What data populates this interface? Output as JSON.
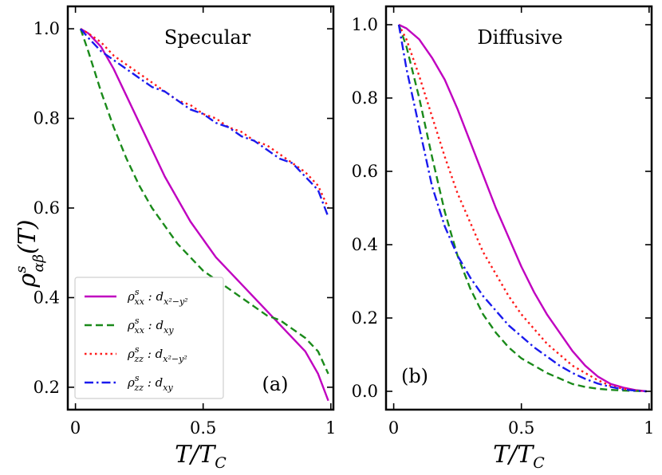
{
  "figure": {
    "ylabel": "ρ",
    "ylabel_sup": "s",
    "ylabel_sub": "αβ",
    "ylabel_tail": "(T)"
  },
  "chart_data": [
    {
      "type": "line",
      "panel": "a",
      "title": "Specular",
      "tag": "(a)",
      "xlabel": "T/T",
      "xlabel_sub": "C",
      "xlim": [
        -0.03,
        1.01
      ],
      "ylim": [
        0.15,
        1.05
      ],
      "xticks": [
        0,
        0.5,
        1
      ],
      "xtick_labels": [
        "0",
        "0.5",
        "1"
      ],
      "yticks": [
        0.2,
        0.4,
        0.6,
        0.8,
        1.0
      ],
      "ytick_labels": [
        "0.2",
        "0.4",
        "0.6",
        "0.8",
        "1.0"
      ],
      "legend": "lower-left",
      "series": [
        {
          "name": "rho_xx_dx2y2",
          "legend_main": "ρ",
          "legend_sup": "s",
          "legend_sub": "xx",
          "legend_mid": " : d",
          "legend_sub2": "x²−y²",
          "color": "#c000c0",
          "dash": "solid",
          "x": [
            0.02,
            0.05,
            0.1,
            0.15,
            0.2,
            0.25,
            0.3,
            0.35,
            0.4,
            0.45,
            0.5,
            0.55,
            0.6,
            0.65,
            0.7,
            0.75,
            0.8,
            0.85,
            0.9,
            0.95,
            0.99
          ],
          "y": [
            1.0,
            0.99,
            0.96,
            0.91,
            0.85,
            0.79,
            0.73,
            0.67,
            0.62,
            0.57,
            0.53,
            0.49,
            0.46,
            0.43,
            0.4,
            0.37,
            0.34,
            0.31,
            0.28,
            0.23,
            0.17
          ]
        },
        {
          "name": "rho_xx_dxy",
          "legend_main": "ρ",
          "legend_sup": "s",
          "legend_sub": "xx",
          "legend_mid": " : d",
          "legend_sub2": "xy",
          "color": "#1a8a1a",
          "dash": "dashed",
          "x": [
            0.02,
            0.05,
            0.1,
            0.15,
            0.2,
            0.25,
            0.3,
            0.35,
            0.4,
            0.45,
            0.5,
            0.55,
            0.6,
            0.65,
            0.7,
            0.75,
            0.8,
            0.85,
            0.9,
            0.95,
            0.99
          ],
          "y": [
            1.0,
            0.95,
            0.86,
            0.78,
            0.71,
            0.65,
            0.6,
            0.56,
            0.52,
            0.49,
            0.46,
            0.44,
            0.42,
            0.4,
            0.38,
            0.36,
            0.35,
            0.33,
            0.31,
            0.28,
            0.23
          ]
        },
        {
          "name": "rho_zz_dx2y2",
          "legend_main": "ρ",
          "legend_sup": "s",
          "legend_sub": "zz",
          "legend_mid": " : d",
          "legend_sub2": "x²−y²",
          "color": "#ff1a1a",
          "dash": "dotted",
          "x": [
            0.02,
            0.05,
            0.1,
            0.15,
            0.2,
            0.25,
            0.3,
            0.35,
            0.4,
            0.45,
            0.5,
            0.55,
            0.6,
            0.65,
            0.7,
            0.75,
            0.8,
            0.85,
            0.9,
            0.95,
            0.99
          ],
          "y": [
            1.0,
            0.99,
            0.97,
            0.94,
            0.92,
            0.9,
            0.88,
            0.86,
            0.84,
            0.83,
            0.81,
            0.8,
            0.78,
            0.77,
            0.75,
            0.74,
            0.72,
            0.7,
            0.68,
            0.65,
            0.6
          ]
        },
        {
          "name": "rho_zz_dxy",
          "legend_main": "ρ",
          "legend_sup": "s",
          "legend_sub": "zz",
          "legend_mid": " : d",
          "legend_sub2": "xy",
          "color": "#1a1aee",
          "dash": "dashdot",
          "x": [
            0.02,
            0.05,
            0.1,
            0.15,
            0.2,
            0.25,
            0.3,
            0.35,
            0.4,
            0.45,
            0.5,
            0.55,
            0.6,
            0.65,
            0.7,
            0.75,
            0.8,
            0.85,
            0.9,
            0.95,
            0.99
          ],
          "y": [
            1.0,
            0.98,
            0.95,
            0.93,
            0.91,
            0.89,
            0.87,
            0.86,
            0.84,
            0.82,
            0.81,
            0.79,
            0.78,
            0.76,
            0.75,
            0.73,
            0.71,
            0.7,
            0.67,
            0.64,
            0.58
          ]
        }
      ]
    },
    {
      "type": "line",
      "panel": "b",
      "title": "Diffusive",
      "tag": "(b)",
      "xlabel": "T/T",
      "xlabel_sub": "C",
      "xlim": [
        -0.03,
        1.01
      ],
      "ylim": [
        -0.05,
        1.05
      ],
      "xticks": [
        0,
        0.5,
        1
      ],
      "xtick_labels": [
        "0",
        "0.5",
        "1"
      ],
      "yticks": [
        0.0,
        0.2,
        0.4,
        0.6,
        0.8,
        1.0
      ],
      "ytick_labels": [
        "0.0",
        "0.2",
        "0.4",
        "0.6",
        "0.8",
        "1.0"
      ],
      "series": [
        {
          "name": "rho_xx_dx2y2",
          "color": "#c000c0",
          "dash": "solid",
          "x": [
            0.02,
            0.05,
            0.1,
            0.15,
            0.2,
            0.25,
            0.3,
            0.35,
            0.4,
            0.45,
            0.5,
            0.55,
            0.6,
            0.65,
            0.7,
            0.75,
            0.8,
            0.85,
            0.9,
            0.95,
            0.99
          ],
          "y": [
            1.0,
            0.99,
            0.96,
            0.91,
            0.85,
            0.77,
            0.68,
            0.59,
            0.5,
            0.42,
            0.34,
            0.27,
            0.21,
            0.16,
            0.11,
            0.07,
            0.04,
            0.02,
            0.01,
            0.003,
            0.0
          ]
        },
        {
          "name": "rho_xx_dxy",
          "color": "#1a8a1a",
          "dash": "dashed",
          "x": [
            0.02,
            0.05,
            0.1,
            0.15,
            0.2,
            0.25,
            0.3,
            0.35,
            0.4,
            0.45,
            0.5,
            0.55,
            0.6,
            0.65,
            0.7,
            0.75,
            0.8,
            0.85,
            0.9,
            0.95,
            0.99
          ],
          "y": [
            1.0,
            0.94,
            0.8,
            0.64,
            0.49,
            0.37,
            0.28,
            0.21,
            0.16,
            0.12,
            0.09,
            0.07,
            0.05,
            0.035,
            0.02,
            0.012,
            0.007,
            0.004,
            0.002,
            0.001,
            0.0
          ]
        },
        {
          "name": "rho_zz_dx2y2",
          "color": "#ff1a1a",
          "dash": "dotted",
          "x": [
            0.02,
            0.05,
            0.1,
            0.15,
            0.2,
            0.25,
            0.3,
            0.35,
            0.4,
            0.45,
            0.5,
            0.55,
            0.6,
            0.65,
            0.7,
            0.75,
            0.8,
            0.85,
            0.9,
            0.95,
            0.99
          ],
          "y": [
            1.0,
            0.96,
            0.86,
            0.75,
            0.64,
            0.54,
            0.46,
            0.38,
            0.32,
            0.26,
            0.21,
            0.17,
            0.13,
            0.1,
            0.07,
            0.05,
            0.03,
            0.015,
            0.007,
            0.002,
            0.0
          ]
        },
        {
          "name": "rho_zz_dxy",
          "color": "#1a1aee",
          "dash": "dashdot",
          "x": [
            0.02,
            0.05,
            0.1,
            0.15,
            0.2,
            0.25,
            0.3,
            0.35,
            0.4,
            0.45,
            0.5,
            0.55,
            0.6,
            0.65,
            0.7,
            0.75,
            0.8,
            0.85,
            0.9,
            0.95,
            0.99
          ],
          "y": [
            1.0,
            0.88,
            0.72,
            0.56,
            0.45,
            0.37,
            0.31,
            0.26,
            0.22,
            0.18,
            0.15,
            0.12,
            0.095,
            0.07,
            0.05,
            0.034,
            0.021,
            0.012,
            0.005,
            0.0015,
            0.0
          ]
        }
      ]
    }
  ]
}
